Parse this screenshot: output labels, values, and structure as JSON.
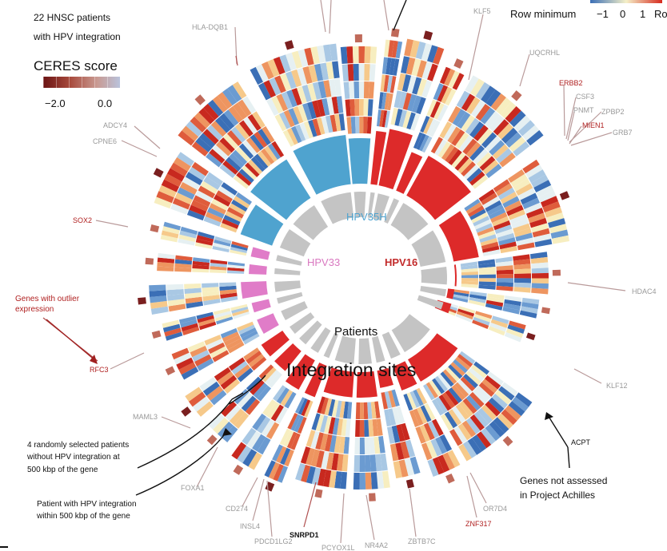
{
  "header": {
    "cohort_line1": "22 HNSC patients",
    "cohort_line2": "with HPV integration"
  },
  "ceres_legend": {
    "title": "CERES score",
    "tick_min": "−2.0",
    "tick_max": "0.0"
  },
  "row_legend": {
    "label": "Row minimum",
    "ticks": [
      "−1",
      "0",
      "1"
    ],
    "cutoff": "Ro"
  },
  "rings": {
    "hpv35h": "HPV35H",
    "hpv33": "HPV33",
    "hpv16": "HPV16",
    "patients": "Patients",
    "integration_sites": "Integration sites"
  },
  "annotations": {
    "outlier_line1": "Genes with outlier",
    "outlier_line2": "expression",
    "random_line1": "4 randomly selected patients",
    "random_line2": "without HPV integration at",
    "random_line3": "500 kbp of the gene",
    "patient_line1": "Patient with HPV integration",
    "patient_line2": "within 500 kbp of the gene",
    "not_assessed_line1": "Genes not assessed",
    "not_assessed_line2": "in Project Achilles"
  },
  "genes": {
    "HLA_DQB1": "HLA-DQB1",
    "KLF5": "KLF5",
    "UQCRHL": "UQCRHL",
    "ERBB2": "ERBB2",
    "CSF3": "CSF3",
    "PNMT": "PNMT",
    "ZPBP2": "ZPBP2",
    "MIEN1": "MIEN1",
    "GRB7": "GRB7",
    "ADCY4": "ADCY4",
    "CPNE6": "CPNE6",
    "SOX2": "SOX2",
    "HDAC4": "HDAC4",
    "RFC3": "RFC3",
    "KLF12": "KLF12",
    "MAML3": "MAML3",
    "ACPT": "ACPT",
    "FOXA1": "FOXA1",
    "CD274": "CD274",
    "INSL4": "INSL4",
    "PDCD1LG2": "PDCD1LG2",
    "SNRPD1": "SNRPD1",
    "PCYOX1L": "PCYOX1L",
    "NR4A2": "NR4A2",
    "ZBTB7C": "ZBTB7C",
    "ZNF317": "ZNF317",
    "OR7D4": "OR7D4"
  },
  "colors": {
    "hpv35h": "#4fa3cf",
    "hpv33": "#e07cc8",
    "hpv16": "#dd2a2a",
    "patients_ring": "#c4c4c4",
    "ceres_low": "#7a1f1f",
    "ceres_high": "#b8bfd6"
  }
}
